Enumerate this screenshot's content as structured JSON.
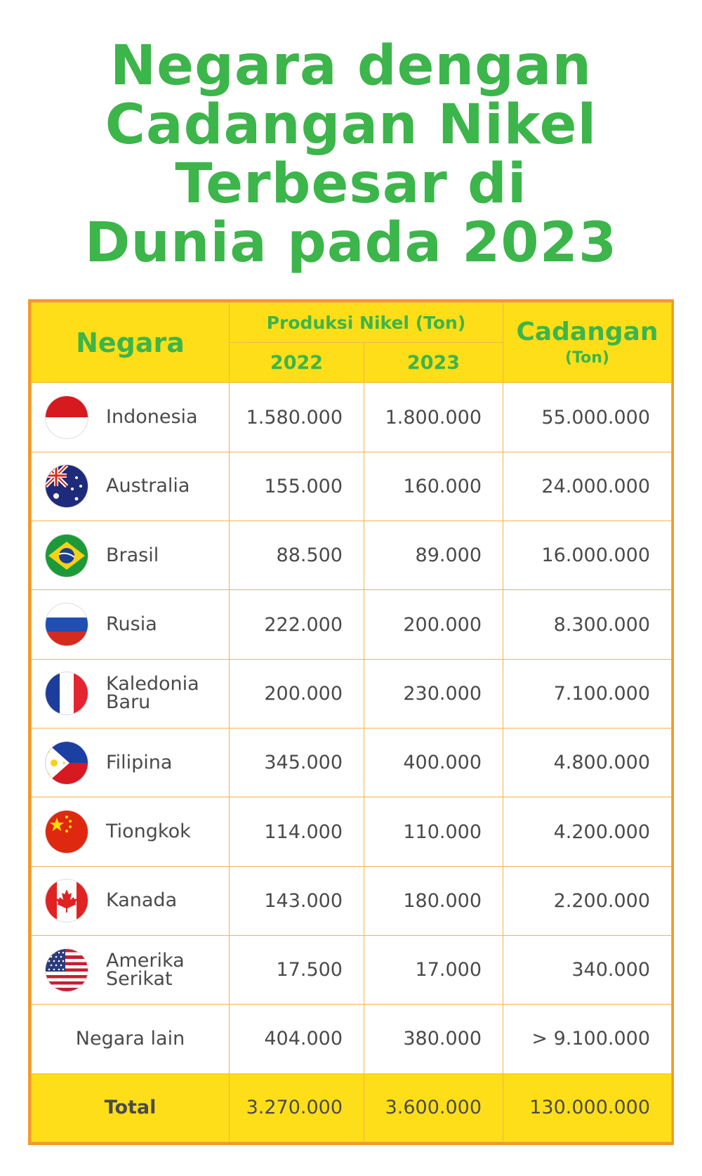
{
  "title_line1": "Negara dengan",
  "title_line2": "Cadangan Nikel",
  "title_line3": "Terbesar di",
  "title_line4": "Dunia pada 2023",
  "header": {
    "negara": "Negara",
    "produksi": "Produksi Nikel (Ton)",
    "year_2022": "2022",
    "year_2023": "2023",
    "cadangan": "Cadangan",
    "cadangan_unit": "(Ton)"
  },
  "rows": [
    {
      "name": "Indonesia",
      "flag": "indonesia-flag-icon",
      "p2022": "1.580.000",
      "p2023": "1.800.000",
      "cadangan": "55.000.000"
    },
    {
      "name": "Australia",
      "flag": "australia-flag-icon",
      "p2022": "155.000",
      "p2023": "160.000",
      "cadangan": "24.000.000"
    },
    {
      "name": "Brasil",
      "flag": "brazil-flag-icon",
      "p2022": "88.500",
      "p2023": "89.000",
      "cadangan": "16.000.000"
    },
    {
      "name": "Rusia",
      "flag": "russia-flag-icon",
      "p2022": "222.000",
      "p2023": "200.000",
      "cadangan": "8.300.000"
    },
    {
      "name_line1": "Kaledonia",
      "name_line2": "Baru",
      "flag": "france-flag-icon",
      "p2022": "200.000",
      "p2023": "230.000",
      "cadangan": "7.100.000"
    },
    {
      "name": "Filipina",
      "flag": "philippines-flag-icon",
      "p2022": "345.000",
      "p2023": "400.000",
      "cadangan": "4.800.000"
    },
    {
      "name": "Tiongkok",
      "flag": "china-flag-icon",
      "p2022": "114.000",
      "p2023": "110.000",
      "cadangan": "4.200.000"
    },
    {
      "name": "Kanada",
      "flag": "canada-flag-icon",
      "p2022": "143.000",
      "p2023": "180.000",
      "cadangan": "2.200.000"
    },
    {
      "name_line1": "Amerika",
      "name_line2": "Serikat",
      "flag": "usa-flag-icon",
      "p2022": "17.500",
      "p2023": "17.000",
      "cadangan": "340.000"
    },
    {
      "name": "Negara lain",
      "p2022": "404.000",
      "p2023": "380.000",
      "cadangan": "> 9.100.000"
    }
  ],
  "total": {
    "label": "Total",
    "p2022": "3.270.000",
    "p2023": "3.600.000",
    "cadangan": "130.000.000"
  },
  "colors": {
    "title_green": "#3cb54a",
    "header_yellow": "#fede18",
    "border_orange": "#f39a24"
  }
}
